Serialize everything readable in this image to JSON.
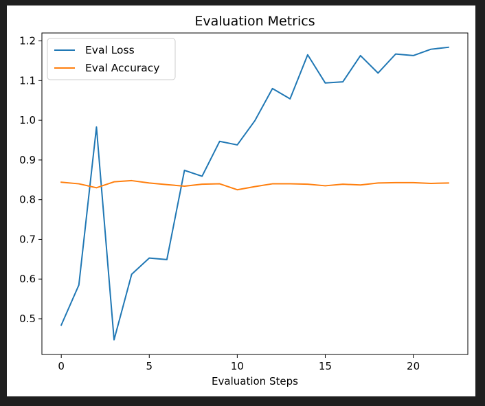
{
  "chart_data": {
    "type": "line",
    "title": "Evaluation Metrics",
    "xlabel": "Evaluation Steps",
    "ylabel": "",
    "x": [
      0,
      1,
      2,
      3,
      4,
      5,
      6,
      7,
      8,
      9,
      10,
      11,
      12,
      13,
      14,
      15,
      16,
      17,
      18,
      19,
      20,
      21,
      22
    ],
    "xlim": [
      -1.1,
      23.1
    ],
    "ylim": [
      0.41,
      1.22
    ],
    "xticks": [
      0,
      5,
      10,
      15,
      20
    ],
    "yticks": [
      0.5,
      0.6,
      0.7,
      0.8,
      0.9,
      1.0,
      1.1,
      1.2
    ],
    "xtick_labels": [
      "0",
      "5",
      "10",
      "15",
      "20"
    ],
    "ytick_labels": [
      "0.5",
      "0.6",
      "0.7",
      "0.8",
      "0.9",
      "1.0",
      "1.1",
      "1.2"
    ],
    "grid": false,
    "legend_position": "upper-left",
    "series": [
      {
        "name": "Eval Loss",
        "color": "#1f77b4",
        "values": [
          0.484,
          0.585,
          0.983,
          0.447,
          0.612,
          0.653,
          0.649,
          0.874,
          0.859,
          0.947,
          0.938,
          0.999,
          1.08,
          1.054,
          1.165,
          1.094,
          1.097,
          1.163,
          1.119,
          1.167,
          1.163,
          1.179,
          1.184
        ]
      },
      {
        "name": "Eval Accuracy",
        "color": "#ff7f0e",
        "values": [
          0.844,
          0.84,
          0.83,
          0.845,
          0.848,
          0.842,
          0.838,
          0.834,
          0.839,
          0.84,
          0.825,
          0.833,
          0.84,
          0.84,
          0.839,
          0.835,
          0.839,
          0.837,
          0.842,
          0.843,
          0.843,
          0.841,
          0.842
        ]
      }
    ]
  }
}
